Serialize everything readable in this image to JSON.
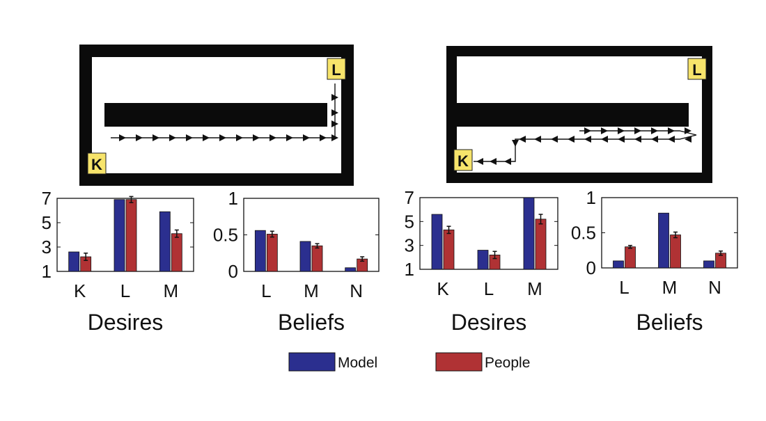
{
  "colors": {
    "model": "#2b2f8f",
    "people": "#b03234",
    "goal": "#f7e46b",
    "wall": "#0b0b0b"
  },
  "scenarios": [
    {
      "map_labels": {
        "corner_top_right": "L",
        "corner_bottom_left": "K"
      },
      "desires": {
        "title": "Desires",
        "categories": [
          "K",
          "L",
          "M"
        ],
        "yticks": [
          "1",
          "3",
          "5",
          "7"
        ],
        "ylim": [
          1,
          7
        ],
        "model": [
          2.6,
          6.9,
          5.9
        ],
        "people": [
          2.2,
          6.9,
          4.1
        ],
        "people_err": [
          0.3,
          0.25,
          0.3
        ]
      },
      "beliefs": {
        "title": "Beliefs",
        "categories": [
          "L",
          "M",
          "N"
        ],
        "yticks": [
          "0",
          "0.5",
          "1"
        ],
        "ylim": [
          0,
          1
        ],
        "model": [
          0.56,
          0.41,
          0.05
        ],
        "people": [
          0.51,
          0.35,
          0.17
        ],
        "people_err": [
          0.04,
          0.03,
          0.03
        ]
      }
    },
    {
      "map_labels": {
        "corner_top_right": "L",
        "corner_bottom_left": "K"
      },
      "desires": {
        "title": "Desires",
        "categories": [
          "K",
          "L",
          "M"
        ],
        "yticks": [
          "1",
          "3",
          "5",
          "7"
        ],
        "ylim": [
          1,
          7
        ],
        "model": [
          5.6,
          2.6,
          7.0
        ],
        "people": [
          4.3,
          2.2,
          5.2
        ],
        "people_err": [
          0.3,
          0.3,
          0.4
        ]
      },
      "beliefs": {
        "title": "Beliefs",
        "categories": [
          "L",
          "M",
          "N"
        ],
        "yticks": [
          "0",
          "0.5",
          "1"
        ],
        "ylim": [
          0,
          1
        ],
        "model": [
          0.1,
          0.78,
          0.1
        ],
        "people": [
          0.3,
          0.47,
          0.21
        ],
        "people_err": [
          0.02,
          0.04,
          0.03
        ]
      }
    }
  ],
  "legend": {
    "model": "Model",
    "people": "People"
  },
  "chart_data": [
    {
      "type": "bar",
      "title": "Desires",
      "categories": [
        "K",
        "L",
        "M"
      ],
      "ylim": [
        1,
        7
      ],
      "series": [
        {
          "name": "Model",
          "values": [
            2.6,
            6.9,
            5.9
          ]
        },
        {
          "name": "People",
          "values": [
            2.2,
            6.9,
            4.1
          ]
        }
      ]
    },
    {
      "type": "bar",
      "title": "Beliefs",
      "categories": [
        "L",
        "M",
        "N"
      ],
      "ylim": [
        0,
        1
      ],
      "series": [
        {
          "name": "Model",
          "values": [
            0.56,
            0.41,
            0.05
          ]
        },
        {
          "name": "People",
          "values": [
            0.51,
            0.35,
            0.17
          ]
        }
      ]
    },
    {
      "type": "bar",
      "title": "Desires",
      "categories": [
        "K",
        "L",
        "M"
      ],
      "ylim": [
        1,
        7
      ],
      "series": [
        {
          "name": "Model",
          "values": [
            5.6,
            2.6,
            7.0
          ]
        },
        {
          "name": "People",
          "values": [
            4.3,
            2.2,
            5.2
          ]
        }
      ]
    },
    {
      "type": "bar",
      "title": "Beliefs",
      "categories": [
        "L",
        "M",
        "N"
      ],
      "ylim": [
        0,
        1
      ],
      "series": [
        {
          "name": "Model",
          "values": [
            0.1,
            0.78,
            0.1
          ]
        },
        {
          "name": "People",
          "values": [
            0.3,
            0.47,
            0.21
          ]
        }
      ]
    }
  ]
}
